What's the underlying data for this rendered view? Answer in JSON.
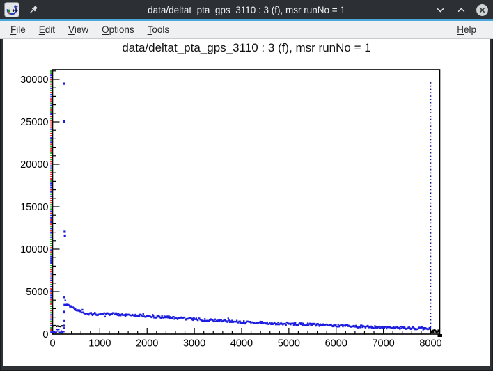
{
  "window": {
    "title": "data/deltat_pta_gps_3110 : 3 (f), msr runNo = 1",
    "app_icon": "root-logo",
    "pin_icon": "pushpin",
    "controls": [
      {
        "name": "minimize",
        "icon": "chevron-down-icon"
      },
      {
        "name": "maximize",
        "icon": "chevron-up-icon"
      },
      {
        "name": "close",
        "icon": "close-circle-icon"
      }
    ]
  },
  "menu": {
    "items": [
      {
        "label": "File",
        "mnemonic": "F"
      },
      {
        "label": "Edit",
        "mnemonic": "E"
      },
      {
        "label": "View",
        "mnemonic": "V"
      },
      {
        "label": "Options",
        "mnemonic": "O"
      },
      {
        "label": "Tools",
        "mnemonic": "T"
      }
    ],
    "right_items": [
      {
        "label": "Help",
        "mnemonic": "H"
      }
    ]
  },
  "chart_data": {
    "type": "scatter",
    "title": "data/deltat_pta_gps_3110 : 3 (f), msr runNo = 1",
    "xlabel": "",
    "ylabel": "",
    "xlim": [
      0,
      8192
    ],
    "ylim": [
      0,
      31150
    ],
    "x_ticks": [
      0,
      1000,
      2000,
      3000,
      4000,
      5000,
      6000,
      7000,
      8000
    ],
    "y_ticks": [
      0,
      5000,
      10000,
      15000,
      20000,
      25000,
      30000
    ],
    "x_minor_step": 200,
    "y_minor_step": 1000,
    "grid": false,
    "legend": false,
    "marker_color": "#1c1ce0",
    "out_of_range_color": "#000000",
    "decay_anchors": [
      [
        252,
        4300
      ],
      [
        287,
        3520
      ],
      [
        434,
        3070
      ],
      [
        581,
        2700
      ],
      [
        729,
        2420
      ],
      [
        950,
        2300
      ],
      [
        1245,
        2380
      ],
      [
        1614,
        2255
      ],
      [
        1983,
        2130
      ],
      [
        2426,
        1970
      ],
      [
        2869,
        1800
      ],
      [
        3312,
        1640
      ],
      [
        3902,
        1475
      ],
      [
        4492,
        1310
      ],
      [
        5083,
        1190
      ],
      [
        5673,
        1065
      ],
      [
        6264,
        945
      ],
      [
        6854,
        820
      ],
      [
        7444,
        740
      ],
      [
        7990,
        655
      ]
    ],
    "rise_points": [
      [
        248,
        700
      ],
      [
        249,
        1550
      ],
      [
        250,
        2550
      ],
      [
        251,
        3450
      ]
    ],
    "peak_outliers": [
      [
        243,
        29500
      ],
      [
        247,
        25050
      ],
      [
        256,
        12050
      ],
      [
        260,
        11600
      ],
      [
        244,
        4370
      ],
      [
        245,
        2620
      ],
      [
        243,
        980
      ]
    ],
    "pre_prompt_band": {
      "ch_range": [
        8,
        244
      ],
      "count_range": [
        150,
        570
      ]
    },
    "pre_prompt_black_row": {
      "ch_range": [
        15,
        215
      ],
      "count_range": [
        880,
        1000
      ]
    },
    "post_range_black_band": {
      "ch_range": [
        8010,
        8185
      ],
      "count_range": [
        150,
        480
      ]
    },
    "range_markers": {
      "left_cluster": {
        "channel": 0,
        "colors": [
          "#e02020",
          "#20a020",
          "#2020e0"
        ],
        "style": "dashed"
      },
      "data_end": {
        "channel": 8000,
        "color": "#1a1a8c",
        "style": "dotted"
      }
    }
  }
}
